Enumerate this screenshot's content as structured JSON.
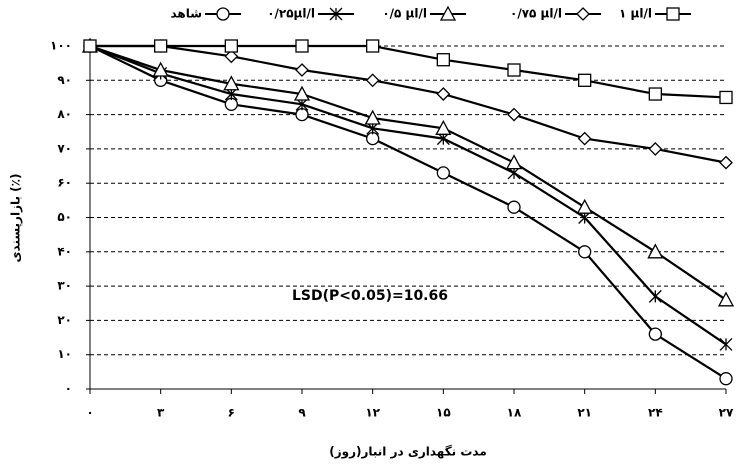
{
  "chart_data": {
    "type": "line",
    "xlabel": "مدت نگهداری در انبار(روز)",
    "ylabel": "بازارپسندی (٪)",
    "annotation": "LSD(P<0.05)=10.66",
    "x": [
      0,
      3,
      6,
      9,
      12,
      15,
      18,
      21,
      24,
      27
    ],
    "series": [
      {
        "name": "شاهد",
        "color": "#000000",
        "marker": "circle",
        "values": [
          100,
          90,
          83,
          80,
          73,
          63,
          53,
          40,
          16,
          3
        ]
      },
      {
        "name": "۰/۲۵µl/l",
        "color": "#000000",
        "marker": "star",
        "values": [
          100,
          92,
          86,
          83,
          76,
          73,
          63,
          50,
          27,
          13
        ]
      },
      {
        "name": "۰/۵ µl/l",
        "color": "#000000",
        "marker": "triangle",
        "values": [
          100,
          93,
          89,
          86,
          79,
          76,
          66,
          53,
          40,
          26
        ]
      },
      {
        "name": "۰/۷۵ µl/l",
        "color": "#000000",
        "marker": "diamond",
        "values": [
          100,
          100,
          97,
          93,
          90,
          86,
          80,
          73,
          70,
          66
        ]
      },
      {
        "name": "۱ µl/l",
        "color": "#000000",
        "marker": "square",
        "values": [
          100,
          100,
          100,
          100,
          100,
          96,
          93,
          90,
          86,
          85
        ]
      }
    ],
    "xlim": [
      0,
      27
    ],
    "xticks": [
      {
        "value": 0,
        "label": "۰"
      },
      {
        "value": 3,
        "label": "۳"
      },
      {
        "value": 6,
        "label": "۶"
      },
      {
        "value": 9,
        "label": "۹"
      },
      {
        "value": 12,
        "label": "۱۲"
      },
      {
        "value": 15,
        "label": "۱۵"
      },
      {
        "value": 18,
        "label": "۱۸"
      },
      {
        "value": 21,
        "label": "۲۱"
      },
      {
        "value": 24,
        "label": "۲۴"
      },
      {
        "value": 27,
        "label": "۲۷"
      }
    ],
    "ylim": [
      0,
      100
    ],
    "yticks": [
      {
        "value": 0,
        "label": "۰"
      },
      {
        "value": 10,
        "label": "۱۰"
      },
      {
        "value": 20,
        "label": "۲۰"
      },
      {
        "value": 30,
        "label": "۳۰"
      },
      {
        "value": 40,
        "label": "۴۰"
      },
      {
        "value": 50,
        "label": "۵۰"
      },
      {
        "value": 60,
        "label": "۶۰"
      },
      {
        "value": 70,
        "label": "۷۰"
      },
      {
        "value": 80,
        "label": "۸۰"
      },
      {
        "value": 90,
        "label": "۹۰"
      },
      {
        "value": 100,
        "label": "۱۰۰"
      }
    ],
    "grid": true
  }
}
